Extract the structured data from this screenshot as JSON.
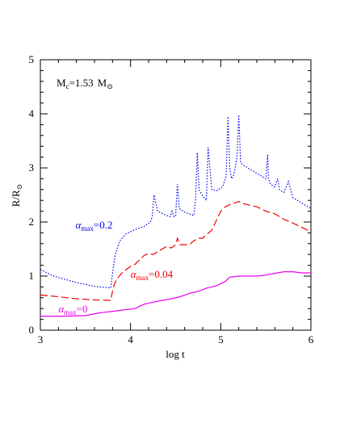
{
  "chart_data": {
    "type": "line",
    "xlabel": "log t",
    "ylabel": "R/R",
    "ylabel_symbol": "⊙",
    "xlim": [
      3,
      6
    ],
    "ylim": [
      0,
      5
    ],
    "xticks": [
      3,
      4,
      5,
      6
    ],
    "yticks": [
      0,
      1,
      2,
      3,
      4,
      5
    ],
    "annotation": {
      "lead": "M",
      "lead_sub": "c",
      "value": "=1.53",
      "unit": "M",
      "unit_symbol": "⊙"
    },
    "series": [
      {
        "label_greek": "α",
        "label_sub": "max",
        "label_value": "=0.2",
        "color": "#0000ee",
        "dash": "dotted",
        "x": [
          3.0,
          3.15,
          3.4,
          3.6,
          3.78,
          3.8,
          3.83,
          3.88,
          3.95,
          4.05,
          4.15,
          4.22,
          4.24,
          4.26,
          4.3,
          4.4,
          4.44,
          4.46,
          4.48,
          4.5,
          4.52,
          4.54,
          4.6,
          4.7,
          4.72,
          4.74,
          4.76,
          4.8,
          4.84,
          4.86,
          4.9,
          4.96,
          5.02,
          5.06,
          5.08,
          5.1,
          5.12,
          5.14,
          5.16,
          5.18,
          5.2,
          5.22,
          5.25,
          5.35,
          5.45,
          5.5,
          5.52,
          5.53,
          5.55,
          5.6,
          5.63,
          5.65,
          5.7,
          5.75,
          5.8,
          5.9,
          6.0
        ],
        "y": [
          1.12,
          1.0,
          0.88,
          0.81,
          0.78,
          1.05,
          1.4,
          1.65,
          1.78,
          1.86,
          1.92,
          2.0,
          2.1,
          2.5,
          2.2,
          2.12,
          2.1,
          2.2,
          2.1,
          2.12,
          2.7,
          2.25,
          2.18,
          2.12,
          2.4,
          3.28,
          2.6,
          2.48,
          2.4,
          3.38,
          2.6,
          2.58,
          2.65,
          2.85,
          3.95,
          3.0,
          2.8,
          2.85,
          3.0,
          3.2,
          3.98,
          3.1,
          3.05,
          2.95,
          2.85,
          2.8,
          3.25,
          2.8,
          2.7,
          2.65,
          2.8,
          2.6,
          2.55,
          2.75,
          2.45,
          2.35,
          2.25
        ]
      },
      {
        "label_greek": "α",
        "label_sub": "max",
        "label_value": "=0.04",
        "color": "#ee0000",
        "dash": "dashed",
        "x": [
          3.0,
          3.2,
          3.4,
          3.6,
          3.78,
          3.8,
          3.82,
          3.85,
          3.9,
          3.95,
          4.0,
          4.05,
          4.1,
          4.15,
          4.2,
          4.25,
          4.3,
          4.35,
          4.4,
          4.45,
          4.5,
          4.52,
          4.55,
          4.6,
          4.65,
          4.7,
          4.75,
          4.8,
          4.85,
          4.9,
          5.0,
          5.05,
          5.1,
          5.15,
          5.2,
          5.22,
          5.3,
          5.4,
          5.5,
          5.6,
          5.7,
          5.8,
          5.9,
          6.0
        ],
        "y": [
          0.65,
          0.62,
          0.58,
          0.56,
          0.55,
          0.72,
          0.85,
          0.95,
          1.05,
          1.12,
          1.18,
          1.22,
          1.3,
          1.38,
          1.42,
          1.4,
          1.45,
          1.5,
          1.55,
          1.52,
          1.58,
          1.7,
          1.58,
          1.58,
          1.58,
          1.65,
          1.7,
          1.7,
          1.78,
          1.85,
          2.2,
          2.28,
          2.32,
          2.35,
          2.38,
          2.35,
          2.32,
          2.28,
          2.2,
          2.15,
          2.05,
          1.98,
          1.9,
          1.82
        ]
      },
      {
        "label_greek": "α",
        "label_sub": "max",
        "label_value": "=0",
        "color": "#ee00ee",
        "dash": "solid",
        "x": [
          3.0,
          3.3,
          3.5,
          3.65,
          3.8,
          3.95,
          4.05,
          4.15,
          4.25,
          4.35,
          4.45,
          4.55,
          4.65,
          4.75,
          4.85,
          4.95,
          5.05,
          5.1,
          5.2,
          5.3,
          5.4,
          5.5,
          5.6,
          5.7,
          5.8,
          5.9,
          6.0
        ],
        "y": [
          0.26,
          0.26,
          0.27,
          0.32,
          0.35,
          0.38,
          0.4,
          0.48,
          0.52,
          0.55,
          0.58,
          0.62,
          0.68,
          0.72,
          0.78,
          0.82,
          0.9,
          0.98,
          1.0,
          1.0,
          1.0,
          1.02,
          1.05,
          1.08,
          1.08,
          1.06,
          1.06
        ]
      }
    ]
  }
}
